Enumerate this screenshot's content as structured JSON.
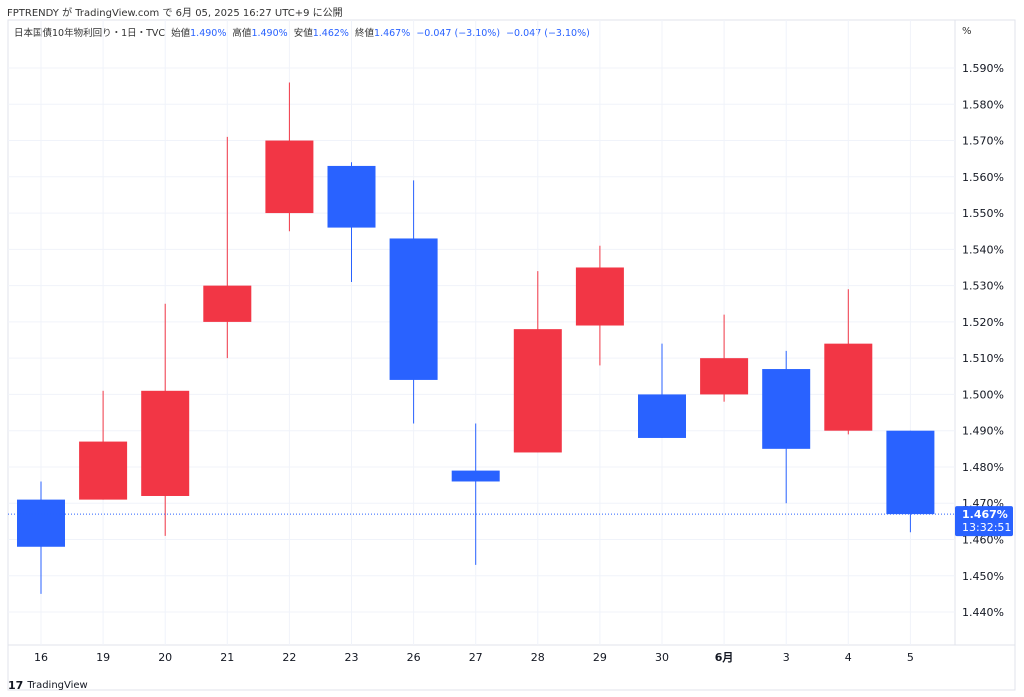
{
  "published": "FPTRENDY が TradingView.com で 6月 05, 2025 16:27 UTC+9 に公開",
  "legend": {
    "symbol": "日本国債10年物利回り・1日・TVC",
    "open_label": "始値",
    "open": "1.490%",
    "high_label": "高値",
    "high": "1.490%",
    "low_label": "安値",
    "low": "1.462%",
    "close_label": "終値",
    "close": "1.467%",
    "change": "−0.047 (−3.10%)",
    "change2": "−0.047 (−3.10%)"
  },
  "unit": "%",
  "last_price": {
    "value": "1.467%",
    "countdown": "13:32:51"
  },
  "logo": "TradingView",
  "colors": {
    "up": "#F23645",
    "down": "#2962FF",
    "grid": "#f0f3fa"
  },
  "chart_data": {
    "type": "candlestick",
    "ylim": [
      1.435,
      1.605
    ],
    "yticks": [
      "1.440%",
      "1.450%",
      "1.460%",
      "1.470%",
      "1.480%",
      "1.490%",
      "1.500%",
      "1.510%",
      "1.520%",
      "1.530%",
      "1.540%",
      "1.550%",
      "1.560%",
      "1.570%",
      "1.580%",
      "1.590%"
    ],
    "categories": [
      "16",
      "19",
      "20",
      "21",
      "22",
      "23",
      "26",
      "27",
      "28",
      "29",
      "30",
      "6月",
      "3",
      "4",
      "5"
    ],
    "ohlc": [
      [
        1.471,
        1.476,
        1.445,
        1.458
      ],
      [
        1.471,
        1.501,
        1.471,
        1.487
      ],
      [
        1.472,
        1.525,
        1.461,
        1.501
      ],
      [
        1.52,
        1.571,
        1.51,
        1.53
      ],
      [
        1.55,
        1.586,
        1.545,
        1.57
      ],
      [
        1.563,
        1.564,
        1.531,
        1.546
      ],
      [
        1.543,
        1.559,
        1.492,
        1.504
      ],
      [
        1.479,
        1.492,
        1.453,
        1.476
      ],
      [
        1.484,
        1.534,
        1.484,
        1.518
      ],
      [
        1.519,
        1.541,
        1.508,
        1.535
      ],
      [
        1.5,
        1.514,
        1.488,
        1.488
      ],
      [
        1.5,
        1.522,
        1.498,
        1.51
      ],
      [
        1.507,
        1.512,
        1.47,
        1.485
      ],
      [
        1.49,
        1.529,
        1.489,
        1.514
      ],
      [
        1.49,
        1.49,
        1.462,
        1.467
      ]
    ]
  }
}
